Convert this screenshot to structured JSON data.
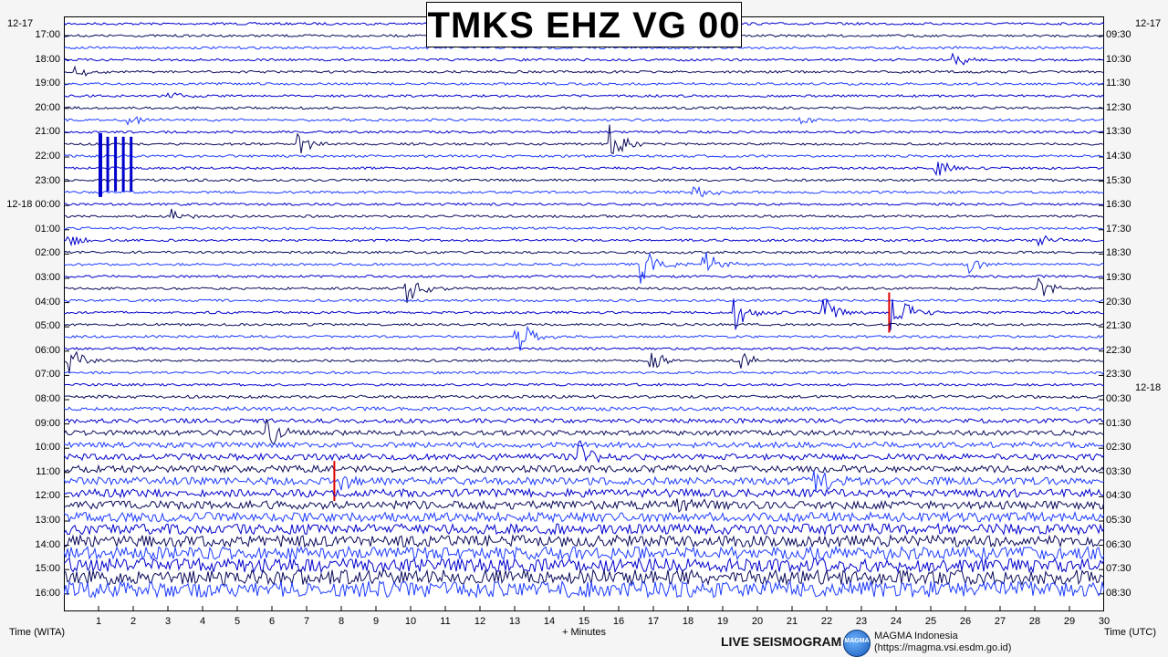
{
  "title": "TMKS EHZ VG 00",
  "left_date_top": "12-17",
  "right_date_top": "12-17",
  "left_date_mid": "12-18",
  "right_date_mid": "12-18",
  "left_times": [
    "17:00",
    "18:00",
    "19:00",
    "20:00",
    "21:00",
    "22:00",
    "23:00",
    "12-18 00:00",
    "01:00",
    "02:00",
    "03:00",
    "04:00",
    "05:00",
    "06:00",
    "07:00",
    "08:00",
    "09:00",
    "10:00",
    "11:00",
    "12:00",
    "13:00",
    "14:00",
    "15:00",
    "16:00"
  ],
  "right_times": [
    "09:30",
    "10:30",
    "11:30",
    "12:30",
    "13:30",
    "14:30",
    "15:30",
    "16:30",
    "17:30",
    "18:30",
    "19:30",
    "20:30",
    "21:30",
    "22:30",
    "23:30",
    "00:30",
    "01:30",
    "02:30",
    "03:30",
    "04:30",
    "05:30",
    "06:30",
    "07:30",
    "08:30"
  ],
  "x_ticks": [
    "1",
    "2",
    "3",
    "4",
    "5",
    "6",
    "7",
    "8",
    "9",
    "10",
    "11",
    "12",
    "13",
    "14",
    "15",
    "16",
    "17",
    "18",
    "19",
    "20",
    "21",
    "22",
    "23",
    "24",
    "25",
    "26",
    "27",
    "28",
    "29",
    "30"
  ],
  "x_axis_label": "+ Minutes",
  "left_axis_label": "Time (WITA)",
  "right_axis_label": "Time (UTC)",
  "footer": {
    "live_label": "LIVE SEISMOGRAM",
    "logo_text": "MAGMA",
    "org_name": "MAGMA Indonesia",
    "org_url": "(https://magma.vsi.esdm.go.id)"
  },
  "colors": {
    "trace_a": "#0000cc",
    "trace_b": "#0a0a5a",
    "trace_c": "#1e3cff",
    "event_red": "#dd0000"
  },
  "chart_data": {
    "type": "seismogram",
    "x_range_minutes": [
      0,
      30
    ],
    "trace_count": 48,
    "trace_span_minutes": 30,
    "events": [
      {
        "trace": 1,
        "minute": 12.1,
        "amp": 0.9
      },
      {
        "trace": 1,
        "minute": 14.4,
        "amp": 1.0
      },
      {
        "trace": 3,
        "minute": 25.6,
        "amp": 0.8
      },
      {
        "trace": 4,
        "minute": 0.3,
        "amp": 0.5
      },
      {
        "trace": 6,
        "minute": 2.9,
        "amp": 0.4
      },
      {
        "trace": 8,
        "minute": 1.8,
        "amp": 0.5
      },
      {
        "trace": 8,
        "minute": 21.2,
        "amp": 0.3
      },
      {
        "trace": 10,
        "minute": 6.7,
        "amp": 0.9
      },
      {
        "trace": 10,
        "minute": 15.7,
        "amp": 1.3
      },
      {
        "trace": 12,
        "minute": 25.1,
        "amp": 0.8
      },
      {
        "trace": 14,
        "minute": 18.1,
        "amp": 0.7
      },
      {
        "trace": 16,
        "minute": 3.1,
        "amp": 0.4
      },
      {
        "trace": 18,
        "minute": 0.1,
        "amp": 0.5
      },
      {
        "trace": 18,
        "minute": 28.1,
        "amp": 0.5
      },
      {
        "trace": 20,
        "minute": 16.6,
        "amp": 1.8
      },
      {
        "trace": 20,
        "minute": 18.4,
        "amp": 1.2
      },
      {
        "trace": 20,
        "minute": 26.1,
        "amp": 0.6
      },
      {
        "trace": 22,
        "minute": 9.8,
        "amp": 1.3
      },
      {
        "trace": 22,
        "minute": 28.1,
        "amp": 0.7
      },
      {
        "trace": 24,
        "minute": 19.3,
        "amp": 1.7
      },
      {
        "trace": 24,
        "minute": 21.8,
        "amp": 1.4
      },
      {
        "trace": 24,
        "minute": 23.8,
        "amp": 1.9,
        "red": true
      },
      {
        "trace": 26,
        "minute": 13.0,
        "amp": 1.5
      },
      {
        "trace": 28,
        "minute": 0.1,
        "amp": 1.1
      },
      {
        "trace": 28,
        "minute": 16.8,
        "amp": 0.9
      },
      {
        "trace": 28,
        "minute": 19.5,
        "amp": 0.6
      },
      {
        "trace": 34,
        "minute": 5.8,
        "amp": 1.1
      },
      {
        "trace": 36,
        "minute": 14.8,
        "amp": 1.2
      },
      {
        "trace": 38,
        "minute": 7.8,
        "amp": 1.2,
        "red": true
      },
      {
        "trace": 38,
        "minute": 21.6,
        "amp": 1.3
      },
      {
        "trace": 40,
        "minute": 17.6,
        "amp": 1.2
      }
    ],
    "calibration_pulses": {
      "trace": 10,
      "minute_start": 1.0,
      "minute_end": 1.9
    }
  }
}
